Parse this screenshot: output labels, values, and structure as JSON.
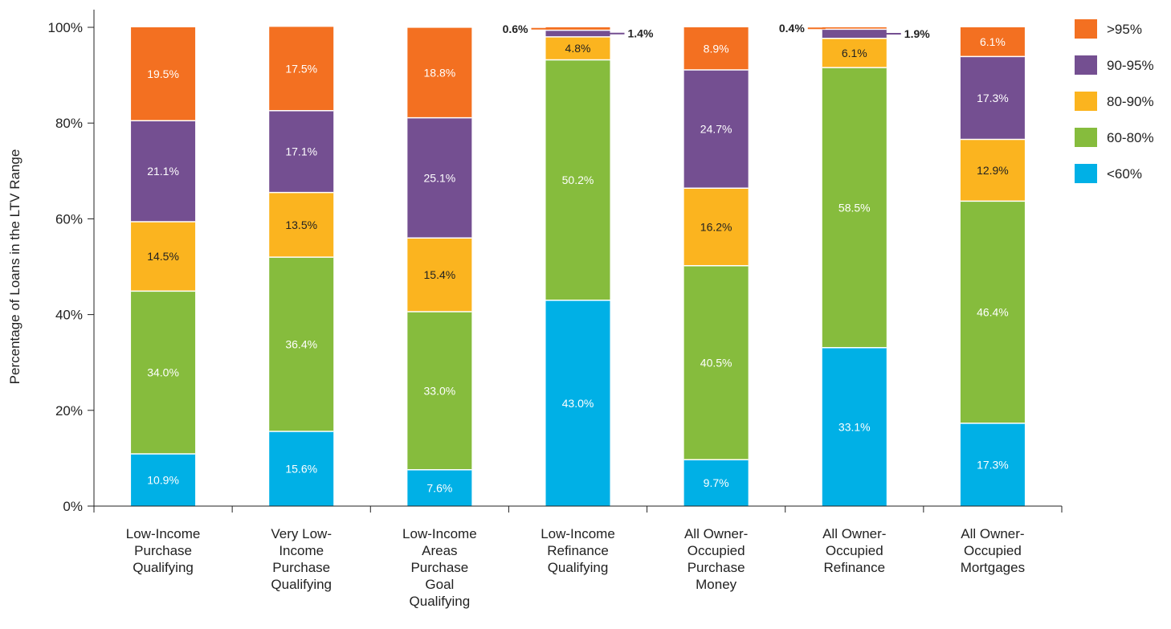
{
  "chart_data": {
    "type": "bar",
    "stacked": true,
    "ylabel": "Percentage of Loans in the LTV Range",
    "ylim": [
      0,
      100
    ],
    "y_ticks": [
      "0%",
      "20%",
      "40%",
      "60%",
      "80%",
      "100%"
    ],
    "y_tick_values": [
      0,
      20,
      40,
      60,
      80,
      100
    ],
    "grid": false,
    "legend_position": "right",
    "categories": [
      [
        "Low-Income",
        "Purchase",
        "Qualifying"
      ],
      [
        "Very Low-",
        "Income",
        "Purchase",
        "Qualifying"
      ],
      [
        "Low-Income",
        "Areas",
        "Purchase",
        "Goal",
        "Qualifying"
      ],
      [
        "Low-Income",
        "Refinance",
        "Qualifying"
      ],
      [
        "All Owner-",
        "Occupied",
        "Purchase",
        "Money"
      ],
      [
        "All Owner-",
        "Occupied",
        "Refinance"
      ],
      [
        "All Owner-",
        "Occupied",
        "Mortgages"
      ]
    ],
    "series": [
      {
        "name": "<60%",
        "color": "#00b0e6",
        "label_color": "#ffffff",
        "values": [
          10.9,
          15.6,
          7.6,
          43.0,
          9.7,
          33.1,
          17.3
        ],
        "labels": [
          "10.9%",
          "15.6%",
          "7.6%",
          "43.0%",
          "9.7%",
          "33.1%",
          "17.3%"
        ]
      },
      {
        "name": "60-80%",
        "color": "#86bc3d",
        "label_color": "#ffffff",
        "values": [
          34.0,
          36.4,
          33.0,
          50.2,
          40.5,
          58.5,
          46.4
        ],
        "labels": [
          "34.0%",
          "36.4%",
          "33.0%",
          "50.2%",
          "40.5%",
          "58.5%",
          "46.4%"
        ]
      },
      {
        "name": "80-90%",
        "color": "#fbb41f",
        "label_color": "#222222",
        "values": [
          14.5,
          13.5,
          15.4,
          4.8,
          16.2,
          6.1,
          12.9
        ],
        "labels": [
          "14.5%",
          "13.5%",
          "15.4%",
          "4.8%",
          "16.2%",
          "6.1%",
          "12.9%"
        ]
      },
      {
        "name": "90-95%",
        "color": "#744f91",
        "label_color": "#ffffff",
        "values": [
          21.1,
          17.1,
          25.1,
          1.4,
          24.7,
          1.9,
          17.3
        ],
        "labels": [
          "21.1%",
          "17.1%",
          "25.1%",
          "1.4%",
          "24.7%",
          "1.9%",
          "17.3%"
        ]
      },
      {
        "name": ">95%",
        "color": "#f37021",
        "label_color": "#ffffff",
        "values": [
          19.5,
          17.5,
          18.8,
          0.6,
          8.9,
          0.4,
          6.1
        ],
        "labels": [
          "19.5%",
          "17.5%",
          "18.8%",
          "0.6%",
          "8.9%",
          "0.4%",
          "6.1%"
        ]
      }
    ],
    "legend": [
      {
        "name": ">95%",
        "color": "#f37021"
      },
      {
        "name": "90-95%",
        "color": "#744f91"
      },
      {
        "name": "80-90%",
        "color": "#fbb41f"
      },
      {
        "name": "60-80%",
        "color": "#86bc3d"
      },
      {
        "name": "<60%",
        "color": "#00b0e6"
      }
    ]
  }
}
